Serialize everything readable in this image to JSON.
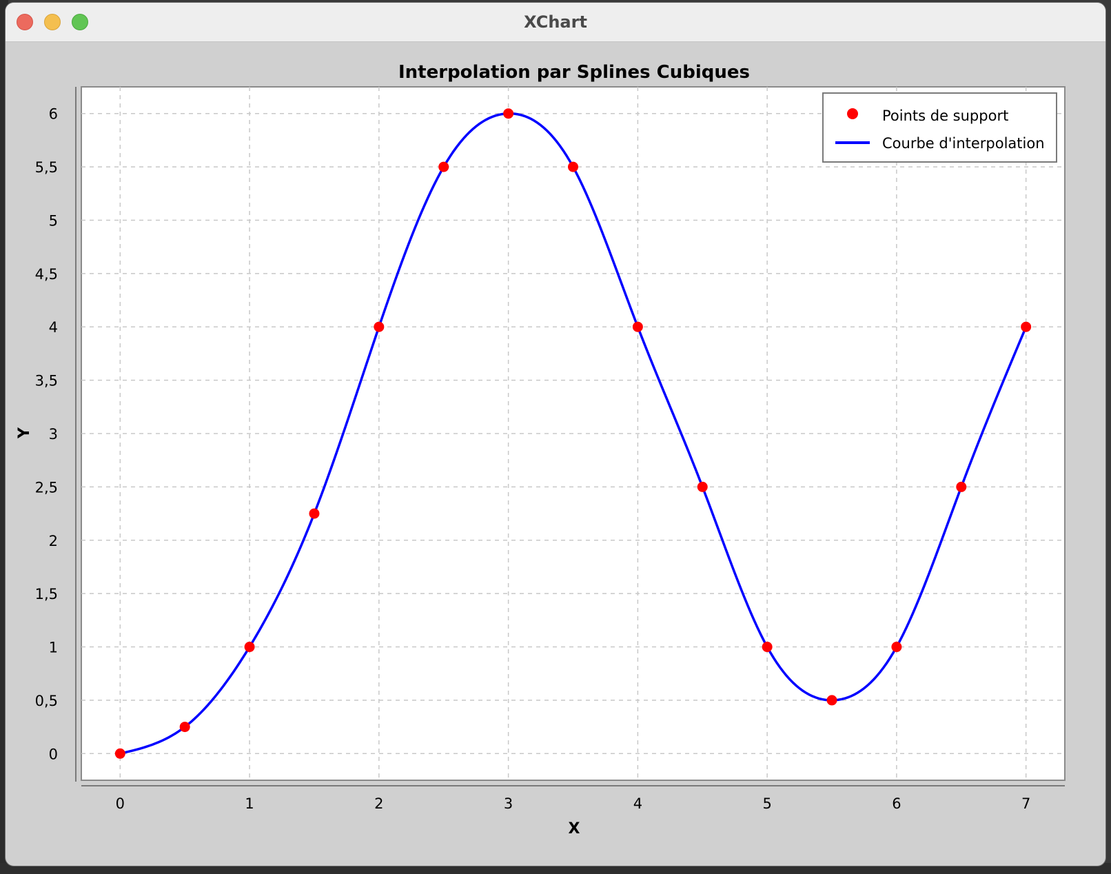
{
  "window": {
    "title": "XChart"
  },
  "chart_data": {
    "type": "line",
    "title": "Interpolation par Splines Cubiques",
    "xlabel": "X",
    "ylabel": "Y",
    "xlim": [
      -0.3,
      7.3
    ],
    "ylim": [
      -0.25,
      6.25
    ],
    "grid": true,
    "legend_position": "top-right",
    "x_ticks": [
      0,
      1,
      2,
      3,
      4,
      5,
      6,
      7
    ],
    "x_tick_labels": [
      "0",
      "1",
      "2",
      "3",
      "4",
      "5",
      "6",
      "7"
    ],
    "y_ticks": [
      0,
      0.5,
      1,
      1.5,
      2,
      2.5,
      3,
      3.5,
      4,
      4.5,
      5,
      5.5,
      6
    ],
    "y_tick_labels": [
      "0",
      "0,5",
      "1",
      "1,5",
      "2",
      "2,5",
      "3",
      "3,5",
      "4",
      "4,5",
      "5",
      "5,5",
      "6"
    ],
    "series": [
      {
        "name": "Points de support",
        "kind": "scatter",
        "color": "#ff0000",
        "x": [
          0,
          0.5,
          1,
          1.5,
          2,
          2.5,
          3,
          3.5,
          4,
          4.5,
          5,
          5.5,
          6,
          6.5,
          7
        ],
        "y": [
          0,
          0.25,
          1,
          2.25,
          4,
          5.5,
          6,
          5.5,
          4,
          2.5,
          1,
          0.5,
          1,
          2.5,
          4
        ]
      },
      {
        "name": "Courbe d'interpolation",
        "kind": "line",
        "color": "#0000ff",
        "x": [
          0,
          0.5,
          1,
          1.5,
          2,
          2.5,
          3,
          3.5,
          4,
          4.5,
          5,
          5.5,
          6,
          6.5,
          7
        ],
        "y": [
          0,
          0.25,
          1,
          2.25,
          4,
          5.5,
          6,
          5.5,
          4,
          2.5,
          1,
          0.5,
          1,
          2.5,
          4
        ]
      }
    ]
  }
}
